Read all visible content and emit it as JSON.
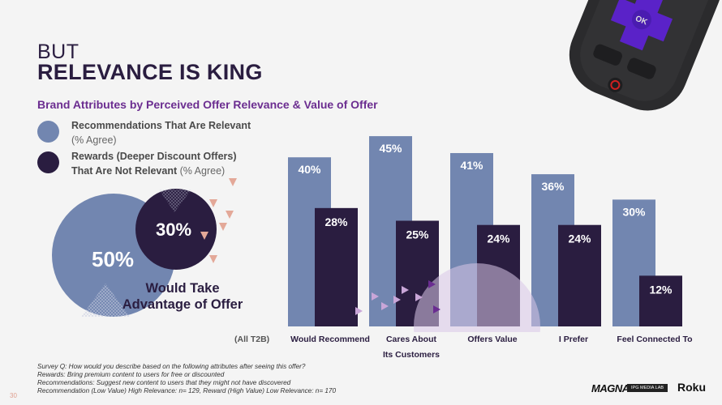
{
  "title": {
    "line1": "BUT",
    "line2": "RELEVANCE IS KING"
  },
  "subtitle": "Brand Attributes by Perceived Offer Relevance & Value of Offer",
  "legend": [
    {
      "label": "Recommendations That Are Relevant",
      "note": "(% Agree)",
      "color": "#7286b0"
    },
    {
      "label_line1": "Rewards (Deeper Discount Offers)",
      "label_line2": "That Are Not Relevant",
      "note": "(% Agree)",
      "color": "#2a1d40"
    }
  ],
  "venn": {
    "big_value": "50%",
    "small_value": "30%",
    "caption_line1": "Would Take",
    "caption_line2": "Advantage of Offer",
    "accent": "#e3a898"
  },
  "chart_data": {
    "type": "bar",
    "x_prefix_label": "(All T2B)",
    "categories": [
      "Would Recommend",
      "Cares About Its Customers",
      "Offers Value",
      "I Prefer",
      "Feel Connected To"
    ],
    "category_lines": [
      [
        "Would Recommend"
      ],
      [
        "Cares About",
        "Its Customers"
      ],
      [
        "Offers Value"
      ],
      [
        "I Prefer"
      ],
      [
        "Feel Connected To"
      ]
    ],
    "series": [
      {
        "values": [
          40,
          45,
          41,
          36,
          30
        ],
        "labels": [
          "40%",
          "45%",
          "41%",
          "36%",
          "30%"
        ],
        "color": "#7286b0"
      },
      {
        "values": [
          28,
          25,
          24,
          24,
          12
        ],
        "labels": [
          "28%",
          "25%",
          "24%",
          "24%",
          "12%"
        ],
        "color": "#2a1d40"
      }
    ],
    "unit": "%",
    "grid": false
  },
  "notes": [
    "Survey Q: How would you describe based on the following attributes after seeing this offer?",
    "Rewards:  Bring premium content to users for free or discounted",
    "Recommendations: Suggest new content to users that they might not have discovered",
    "Recommendation (Low Value) High Relevance: n= 129, Reward (High Value) Low Relevance: n= 170"
  ],
  "page_number": "30",
  "logos": {
    "magna": "MAGNA",
    "ipg": "IPG MEDIA LAB",
    "roku": "Roku"
  },
  "remote": {
    "ok_label": "OK",
    "dpad_color": "#5a22c8"
  }
}
